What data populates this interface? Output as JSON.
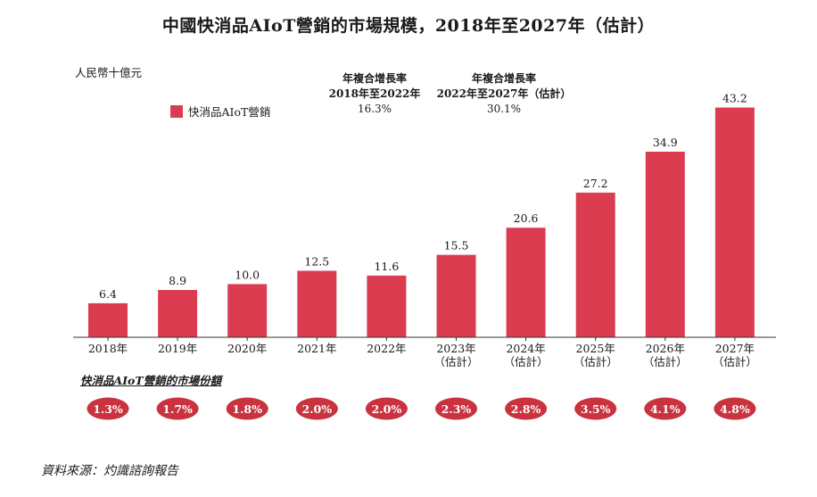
{
  "chart_data": {
    "type": "bar",
    "title": "中國快消品AIoT營銷的市場規模，2018年至2027年（估計）",
    "ylabel": "人民幣十億元",
    "legend": "快消品AIoT營銷",
    "categories": [
      [
        "2018年"
      ],
      [
        "2019年"
      ],
      [
        "2020年"
      ],
      [
        "2021年"
      ],
      [
        "2022年"
      ],
      [
        "2023年",
        "（估計）"
      ],
      [
        "2024年",
        "（估計）"
      ],
      [
        "2025年",
        "（估計）"
      ],
      [
        "2026年",
        "（估計）"
      ],
      [
        "2027年",
        "（估計）"
      ]
    ],
    "values": [
      6.4,
      8.9,
      10.0,
      12.5,
      11.6,
      15.5,
      20.6,
      27.2,
      34.9,
      43.2
    ],
    "value_labels": [
      "6.4",
      "8.9",
      "10.0",
      "12.5",
      "11.6",
      "15.5",
      "20.6",
      "27.2",
      "34.9",
      "43.2"
    ],
    "ylim": [
      0,
      50
    ],
    "color": "#dc3c50",
    "market_share_title": "快消品AIoT營銷的市場份額",
    "market_share": [
      "1.3%",
      "1.7%",
      "1.8%",
      "2.0%",
      "2.0%",
      "2.3%",
      "2.8%",
      "3.5%",
      "4.1%",
      "4.8%"
    ],
    "cagr": [
      {
        "label": "年複合增長率",
        "period": "2018年至2022年",
        "value": "16.3%"
      },
      {
        "label": "年複合增長率",
        "period": "2022年至2027年（估計）",
        "value": "30.1%"
      }
    ]
  },
  "source": "資料來源：灼識諮詢報告"
}
